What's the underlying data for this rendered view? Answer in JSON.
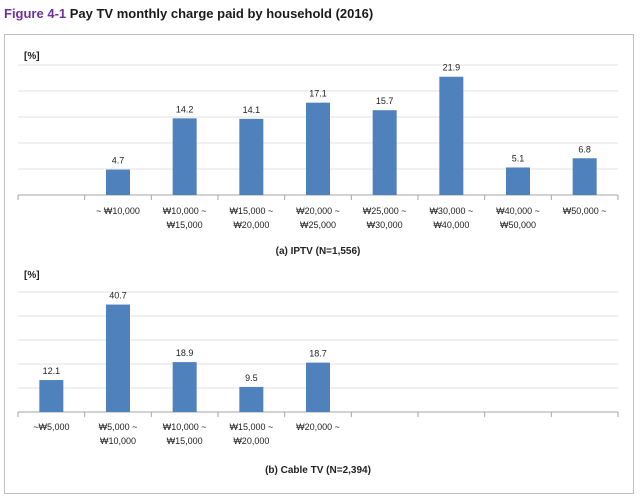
{
  "figure": {
    "number": "Figure 4-1",
    "title": "Pay TV monthly charge paid by household (2016)"
  },
  "chart_data": [
    {
      "type": "bar",
      "title": "(a) IPTV (N=1,556)",
      "ylabel": "[%]",
      "ylim": [
        0,
        25
      ],
      "grid": true,
      "color": "#4f81bd",
      "categories": [
        "",
        "~ ₩10,000",
        "₩10,000 ~\n₩15,000",
        "₩15,000 ~\n₩20,000",
        "₩20,000 ~\n₩25,000",
        "₩25,000 ~\n₩30,000",
        "₩30,000 ~\n₩40,000",
        "₩40,000 ~\n₩50,000",
        "₩50,000 ~"
      ],
      "values": [
        null,
        4.7,
        14.2,
        14.1,
        17.1,
        15.7,
        21.9,
        5.1,
        6.8
      ],
      "labels": [
        "",
        "4.7",
        "14.2",
        "14.1",
        "17.1",
        "15.7",
        "21.9",
        "5.1",
        "6.8"
      ]
    },
    {
      "type": "bar",
      "title": "(b) Cable TV (N=2,394)",
      "ylabel": "[%]",
      "ylim": [
        0,
        50
      ],
      "grid": true,
      "color": "#4f81bd",
      "categories": [
        "~₩5,000",
        "₩5,000 ~\n₩10,000",
        "₩10,000 ~\n₩15,000",
        "₩15,000 ~\n₩20,000",
        "₩20,000 ~",
        "",
        "",
        "",
        ""
      ],
      "values": [
        12.1,
        40.7,
        18.9,
        9.5,
        18.7,
        null,
        null,
        null,
        null
      ],
      "labels": [
        "12.1",
        "40.7",
        "18.9",
        "9.5",
        "18.7",
        "",
        "",
        "",
        ""
      ]
    }
  ]
}
